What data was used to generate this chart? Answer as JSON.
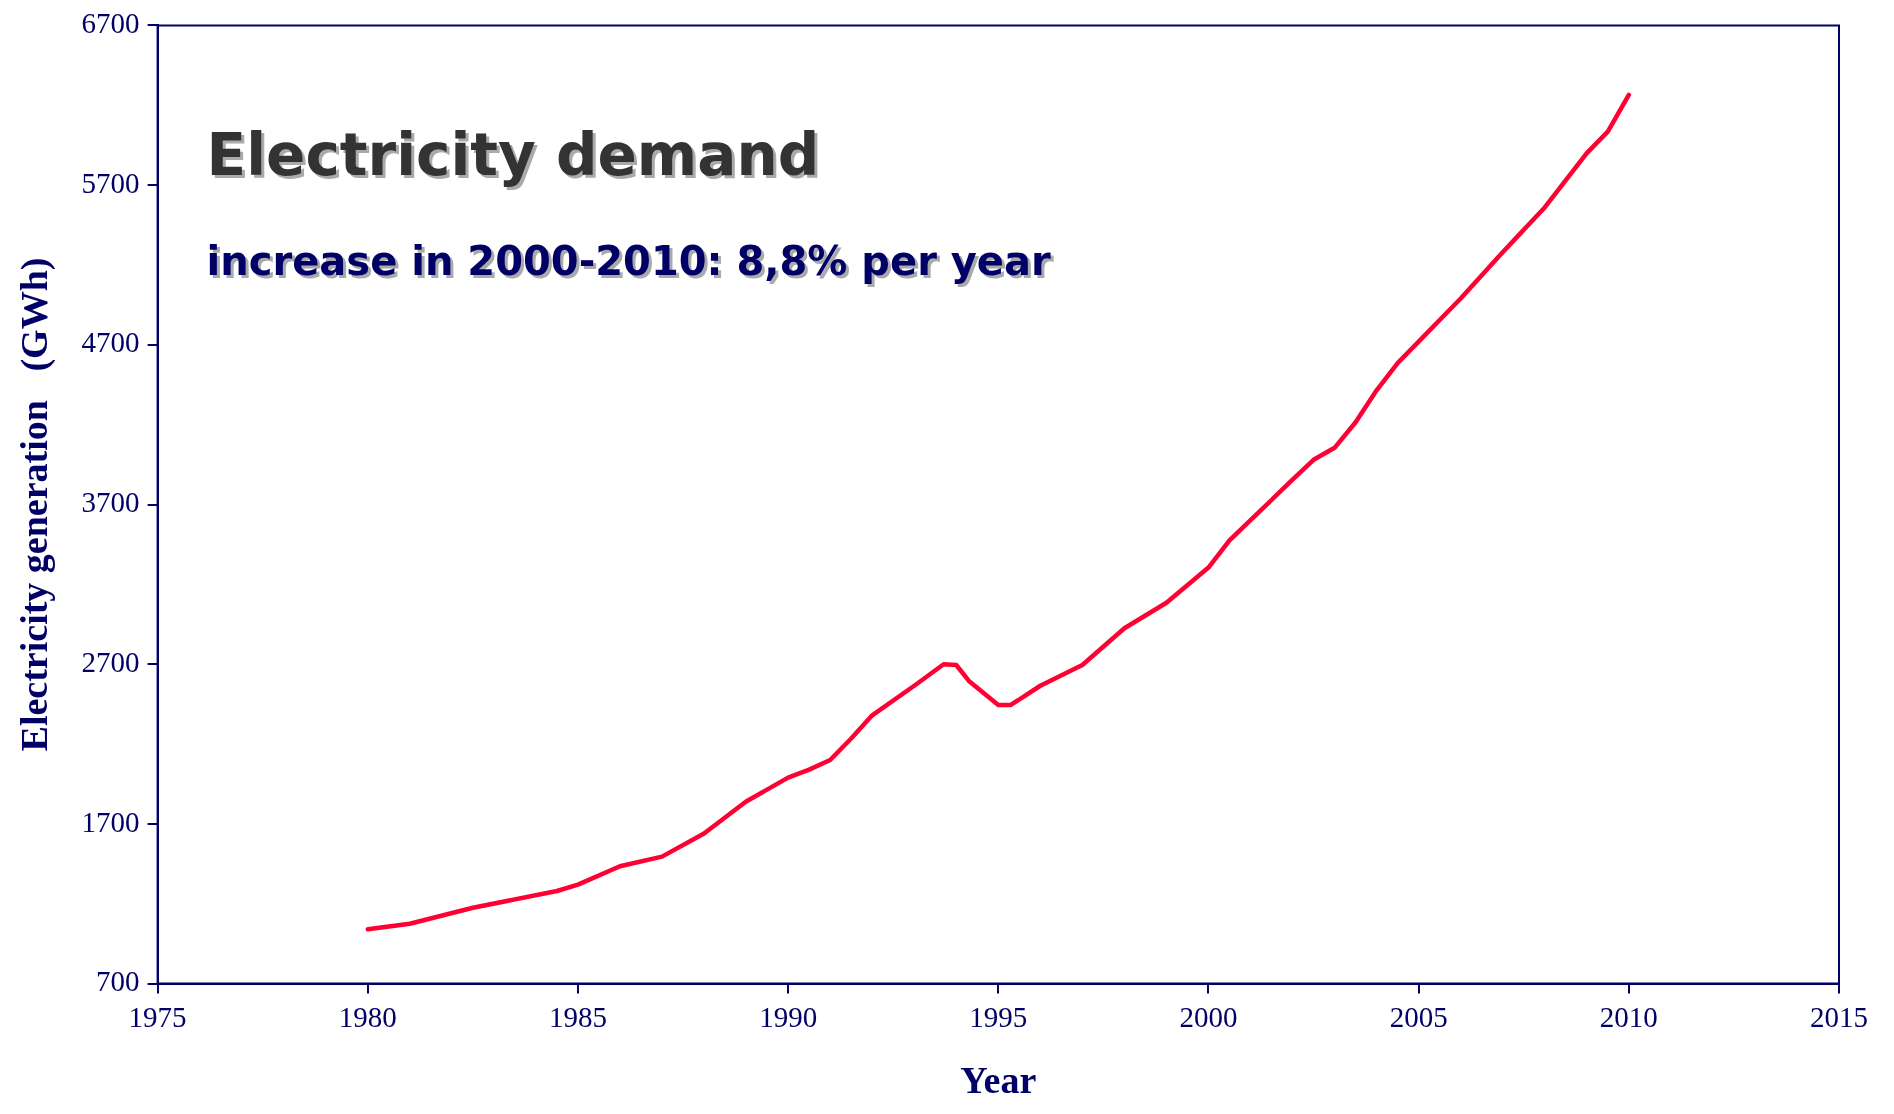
{
  "chart_data": {
    "type": "line",
    "title": "Electricity demand",
    "subtitle": "increase in 2000-2010: 8,8% per year",
    "xlabel": "Year",
    "ylabel": "Electricity generation   (GWh)",
    "x": [
      1980,
      1981,
      1982.5,
      1984.5,
      1985,
      1986,
      1987,
      1988,
      1989,
      1990,
      1990.5,
      1991,
      1991.5,
      1992,
      1993,
      1993.7,
      1994,
      1994.3,
      1995,
      1995.3,
      1996,
      1997,
      1998,
      1999,
      2000,
      2000.5,
      2002,
      2002.5,
      2003,
      2003.5,
      2004,
      2004.5,
      2006,
      2007,
      2008,
      2009,
      2009.5,
      2010
    ],
    "values": [
      1040,
      1075,
      1175,
      1280,
      1320,
      1435,
      1495,
      1640,
      1840,
      1990,
      2040,
      2100,
      2235,
      2380,
      2565,
      2700,
      2695,
      2595,
      2445,
      2445,
      2565,
      2695,
      2925,
      3085,
      3305,
      3475,
      3855,
      3980,
      4055,
      4215,
      4415,
      4585,
      4990,
      5280,
      5560,
      5900,
      6035,
      6265
    ],
    "color": "#ff0033",
    "xlim": [
      1975,
      2015
    ],
    "xticks": [
      1975,
      1980,
      1985,
      1990,
      1995,
      2000,
      2005,
      2010,
      2015
    ],
    "ylim": [
      700,
      6700
    ],
    "yticks": [
      700,
      1700,
      2700,
      3700,
      4700,
      5700,
      6700
    ],
    "grid": false,
    "legend": false,
    "marker": "none",
    "line_style": "solid"
  }
}
